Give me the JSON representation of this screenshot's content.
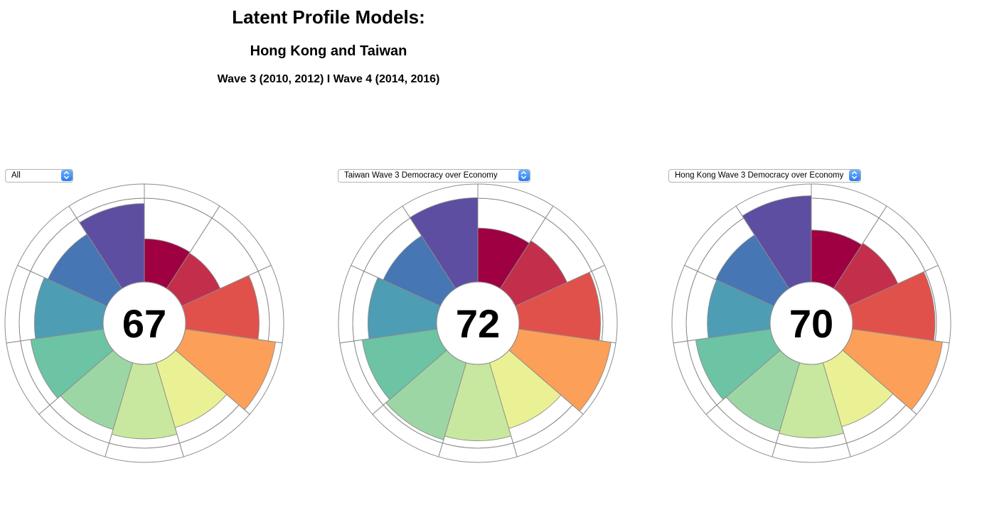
{
  "header": {
    "title": "Latent Profile Models:",
    "subtitle": "Hong Kong and Taiwan",
    "wave_line": "Wave 3 (2010, 2012) I Wave 4 (2014, 2016)"
  },
  "icons": {
    "dropdown_stepper": "up-down-chevrons"
  },
  "chart_data": {
    "type": "aster-polar",
    "slices": 11,
    "scale_max": 100,
    "grid": "off",
    "slice_colors": [
      "#9E0041",
      "#C32F4B",
      "#E1514B",
      "#FB9F59",
      "#EAF195",
      "#C7E89E",
      "#9CD6A4",
      "#6CC4A4",
      "#4D9DB4",
      "#4776B4",
      "#5E4EA1"
    ],
    "background_color": "#FFFFFF",
    "outline_color": "#8C8C8C",
    "charts": [
      {
        "dropdown_value": "All",
        "center_score": "67",
        "values": [
          44,
          43,
          75,
          93,
          69,
          76,
          71,
          75,
          70,
          66,
          80
        ]
      },
      {
        "dropdown_value": "Taiwan Wave 3 Democracy over Economy",
        "center_score": "72",
        "values": [
          55,
          58,
          83,
          95,
          70,
          78,
          82,
          77,
          70,
          64,
          86
        ]
      },
      {
        "dropdown_value": "Hong Kong Wave 3 Democracy over Economy",
        "center_score": "70",
        "values": [
          53,
          55,
          84,
          93,
          68,
          75,
          73,
          77,
          64,
          65,
          88
        ]
      }
    ]
  }
}
